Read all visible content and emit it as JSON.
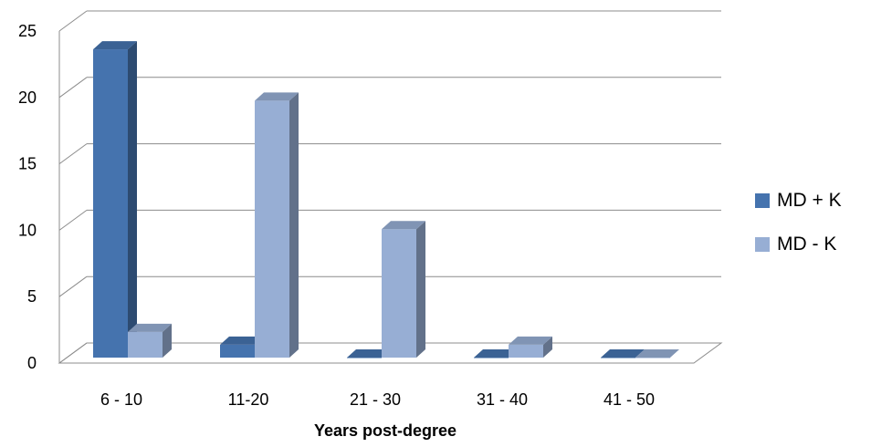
{
  "chart_data": {
    "type": "bar",
    "categories": [
      "6 - 10",
      "11-20",
      "21 - 30",
      "31 - 40",
      "41 - 50"
    ],
    "series": [
      {
        "name": "MD + K",
        "values": [
          24,
          1,
          0,
          0,
          0
        ],
        "color": "#4573AE"
      },
      {
        "name": "MD - K",
        "values": [
          2,
          20,
          10,
          1,
          0
        ],
        "color": "#97AED4"
      }
    ],
    "title": "",
    "xlabel": "Years post-degree",
    "ylabel": "",
    "ylim": [
      0,
      25
    ],
    "yticks": [
      0,
      5,
      10,
      15,
      20,
      25
    ],
    "grid": true,
    "legend_position": "right",
    "style": "3d-clustered-column"
  }
}
